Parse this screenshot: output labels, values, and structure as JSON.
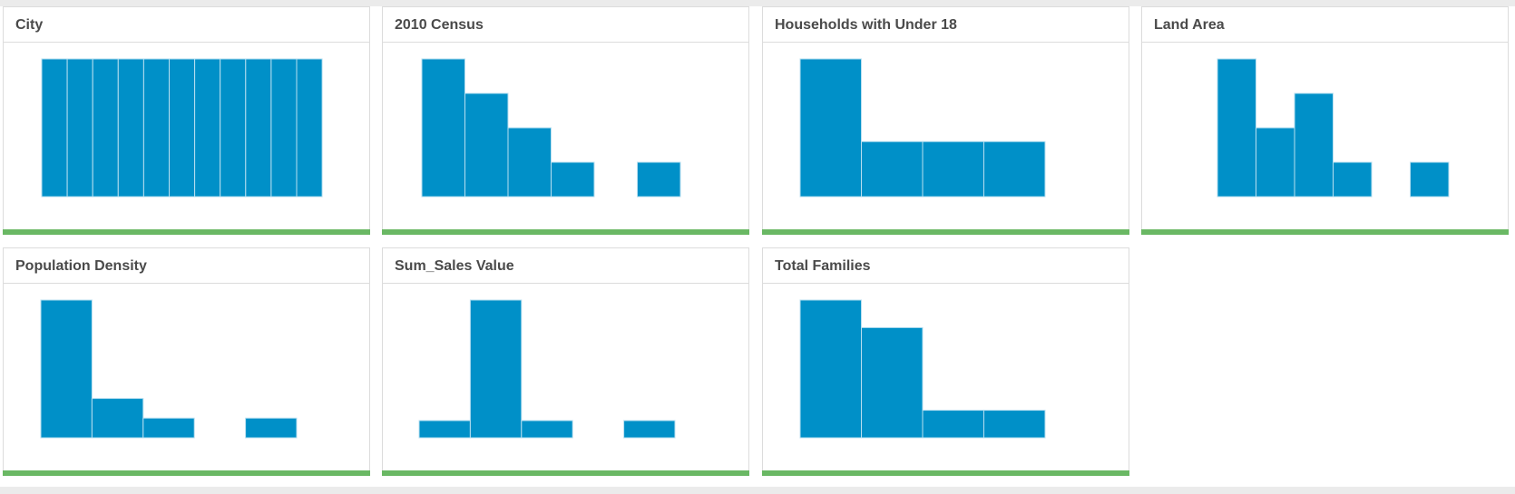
{
  "theme": {
    "bar_color": "#0090c8",
    "status_color": "#6ab864"
  },
  "panels": [
    {
      "id": "city",
      "title": "City",
      "chart_type": "histogram",
      "values": [
        1,
        1,
        1,
        1,
        1,
        1,
        1,
        1,
        1,
        1,
        1
      ],
      "max": 1
    },
    {
      "id": "census-2010",
      "title": "2010 Census",
      "chart_type": "histogram",
      "values": [
        4,
        3,
        2,
        1,
        0,
        1
      ],
      "max": 4
    },
    {
      "id": "households-under-18",
      "title": "Households with Under 18",
      "chart_type": "histogram",
      "values": [
        2.5,
        1,
        1,
        1
      ],
      "max": 2.5
    },
    {
      "id": "land-area",
      "title": "Land Area",
      "chart_type": "histogram",
      "values": [
        4,
        2,
        3,
        1,
        0,
        1
      ],
      "max": 4
    },
    {
      "id": "population-density",
      "title": "Population Density",
      "chart_type": "histogram",
      "values": [
        7,
        2,
        1,
        0,
        1
      ],
      "max": 7
    },
    {
      "id": "sum-sales-value",
      "title": "Sum_Sales Value",
      "chart_type": "histogram",
      "values": [
        1,
        8,
        1,
        0,
        1
      ],
      "max": 8
    },
    {
      "id": "total-families",
      "title": "Total Families",
      "chart_type": "histogram",
      "values": [
        5,
        4,
        1,
        1
      ],
      "max": 5
    }
  ]
}
